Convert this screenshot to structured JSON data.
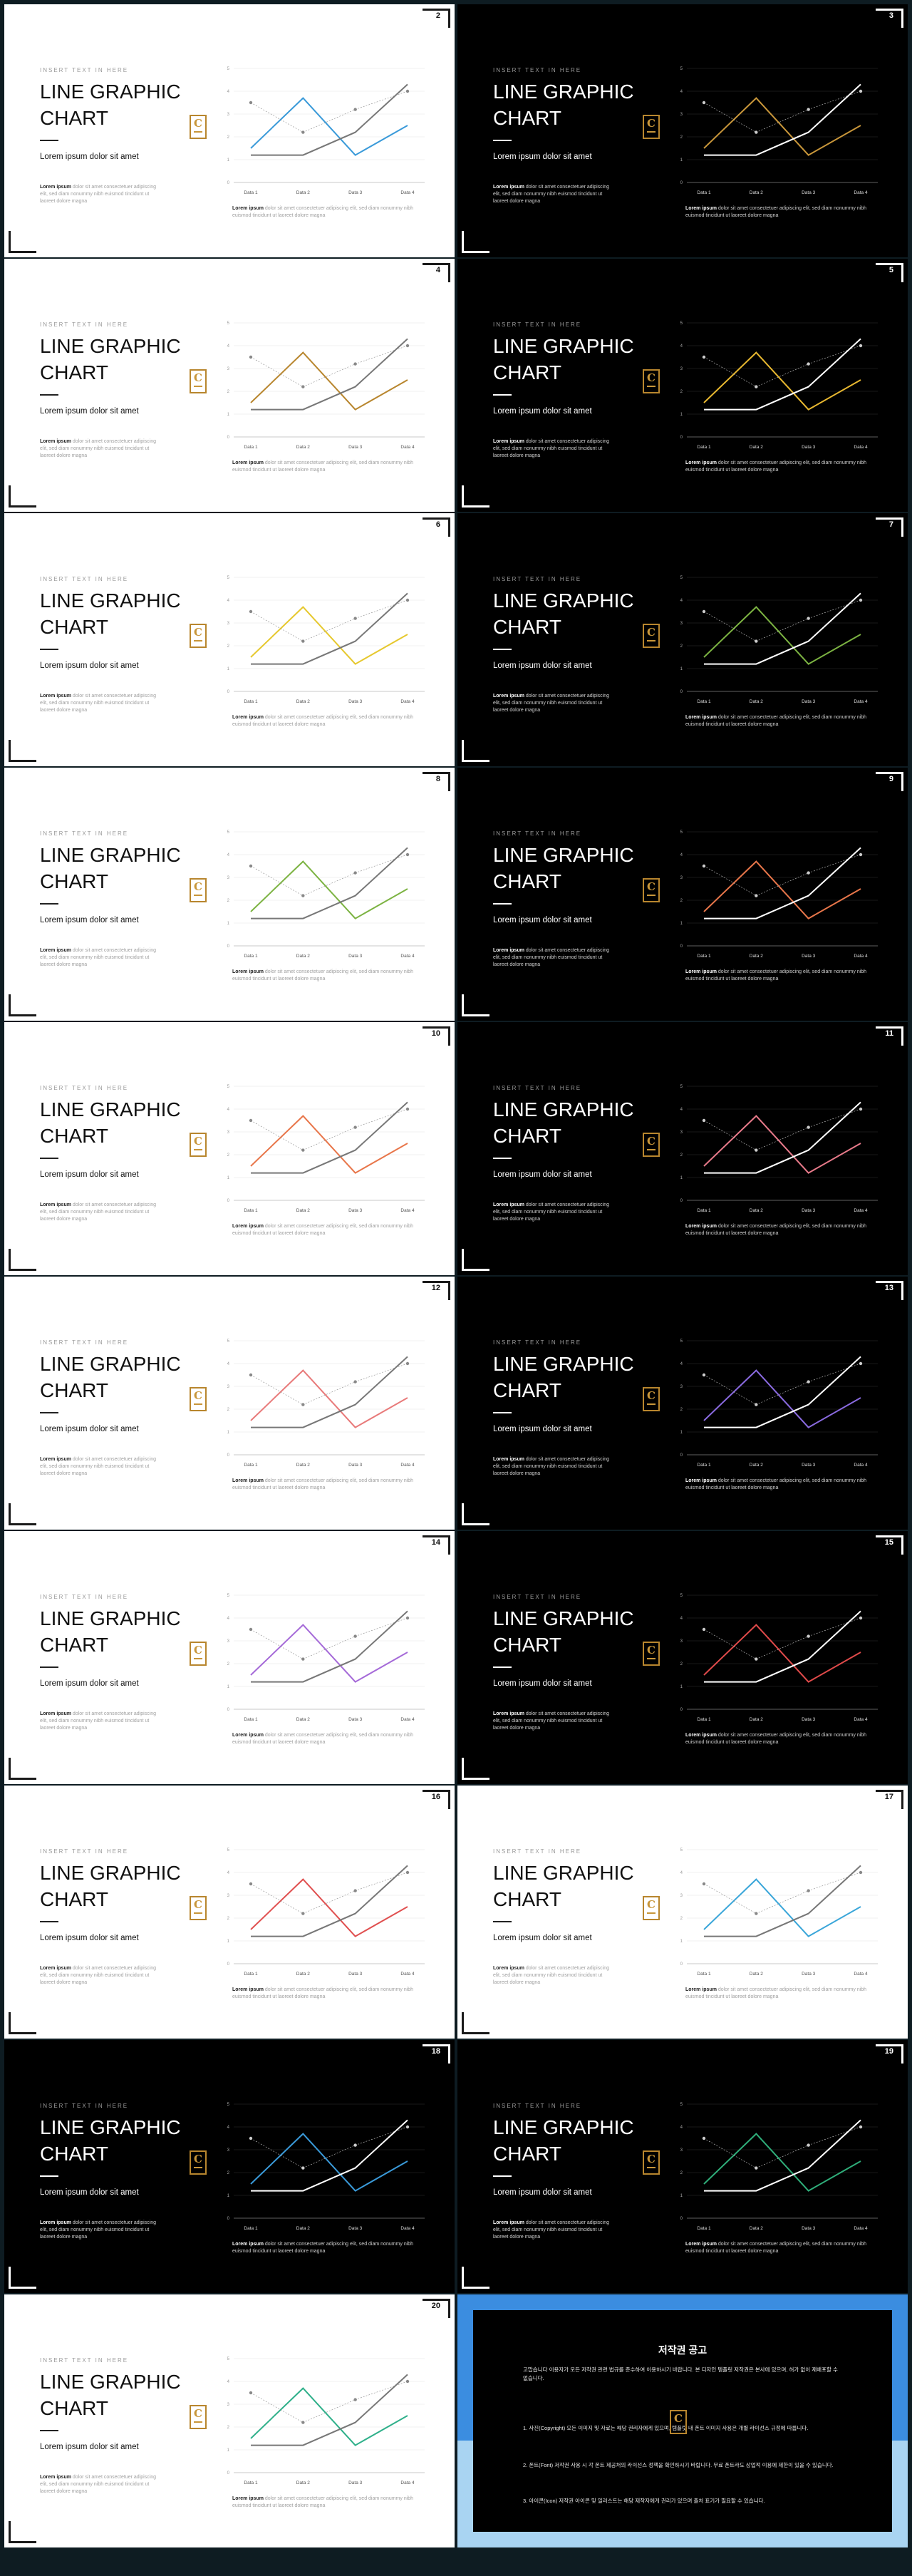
{
  "template": {
    "kicker": "INSERT TEXT IN HERE",
    "title": "LINE GRAPHIC CHART",
    "subtitle": "Lorem ipsum dolor sit amet",
    "body_bold": "Lorem ipsum",
    "body_text": "dolor sit amet consectetuer adipiscing elit, sed diam nonummy nibh euismod tincidunt ut laoreet dolore magna",
    "caption_bold": "Lorem ipsum",
    "caption_text": "dolor sit amet consectetuer adipiscing elit, sed diam nonummy nibh euismod tincidunt ut laoreet dolore magna",
    "logo_letter": "C"
  },
  "chart_data": {
    "type": "line",
    "categories": [
      "Data 1",
      "Data 2",
      "Data 3",
      "Data 4"
    ],
    "ylim": [
      0,
      5
    ],
    "yticks": [
      "0",
      "1",
      "2",
      "3",
      "4",
      "5"
    ],
    "series": [
      {
        "values": [
          1.5,
          3.7,
          1.2,
          2.5
        ]
      },
      {
        "values": [
          1.2,
          1.2,
          2.2,
          4.3
        ]
      },
      {
        "values": [
          3.5,
          2.2,
          3.2,
          4.0
        ]
      }
    ]
  },
  "slides": [
    {
      "page": "2",
      "theme": "light",
      "accent": "#3a9ad9",
      "gray": "#777777",
      "marker": "#888888"
    },
    {
      "page": "3",
      "theme": "dark",
      "accent": "#c8963a",
      "gray": "#ffffff",
      "marker": "#cccccc"
    },
    {
      "page": "4",
      "theme": "light",
      "accent": "#b8862e",
      "gray": "#777777",
      "marker": "#888888"
    },
    {
      "page": "5",
      "theme": "dark",
      "accent": "#e8b830",
      "gray": "#ffffff",
      "marker": "#cccccc"
    },
    {
      "page": "6",
      "theme": "light",
      "accent": "#e6c82e",
      "gray": "#777777",
      "marker": "#888888"
    },
    {
      "page": "7",
      "theme": "dark",
      "accent": "#7cb342",
      "gray": "#ffffff",
      "marker": "#cccccc"
    },
    {
      "page": "8",
      "theme": "light",
      "accent": "#7cb342",
      "gray": "#777777",
      "marker": "#888888"
    },
    {
      "page": "9",
      "theme": "dark",
      "accent": "#e8764a",
      "gray": "#ffffff",
      "marker": "#cccccc"
    },
    {
      "page": "10",
      "theme": "light",
      "accent": "#e8764a",
      "gray": "#777777",
      "marker": "#888888"
    },
    {
      "page": "11",
      "theme": "dark",
      "accent": "#e87a8a",
      "gray": "#ffffff",
      "marker": "#cccccc"
    },
    {
      "page": "12",
      "theme": "light",
      "accent": "#e87a7a",
      "gray": "#777777",
      "marker": "#888888"
    },
    {
      "page": "13",
      "theme": "dark",
      "accent": "#8a6ae0",
      "gray": "#ffffff",
      "marker": "#cccccc"
    },
    {
      "page": "14",
      "theme": "light",
      "accent": "#a56ad8",
      "gray": "#777777",
      "marker": "#888888"
    },
    {
      "page": "15",
      "theme": "dark",
      "accent": "#e04a4a",
      "gray": "#ffffff",
      "marker": "#cccccc"
    },
    {
      "page": "16",
      "theme": "light",
      "accent": "#e05050",
      "gray": "#777777",
      "marker": "#888888"
    },
    {
      "page": "17",
      "theme": "light",
      "accent": "#3aa6d9",
      "gray": "#777777",
      "marker": "#888888"
    },
    {
      "page": "18",
      "theme": "dark",
      "accent": "#3a9ad9",
      "gray": "#ffffff",
      "marker": "#cccccc"
    },
    {
      "page": "19",
      "theme": "dark",
      "accent": "#2fae7a",
      "gray": "#ffffff",
      "marker": "#cccccc"
    },
    {
      "page": "20",
      "theme": "light",
      "accent": "#2fb08a",
      "gray": "#777777",
      "marker": "#888888"
    }
  ],
  "copyright": {
    "heading": "저작권 공고",
    "para1": "고맙습니다 이용자가 모든 저작권 관련 법규를 준수하여 이용하시기 바랍니다. 본 디자인 템플릿 저작권은 본사에 있으며, 허가 없이 재배포할 수 없습니다.",
    "para2": "1. 사진(Copyright) 모든 이미지 및 자료는 해당 권리자에게 있으며, 템플릿 내 폰트 이미지 사용은 개별 라이선스 규정에 따릅니다.",
    "para3": "2. 폰트(Font) 저작권 사용 시 각 폰트 제공처의 라이선스 정책을 확인하시기 바랍니다. 무료 폰트라도 상업적 이용에 제한이 있을 수 있습니다.",
    "para4": "3. 아이콘(Icon) 저작권 아이콘 및 일러스트는 해당 제작자에게 권리가 있으며 출처 표기가 필요할 수 있습니다."
  }
}
